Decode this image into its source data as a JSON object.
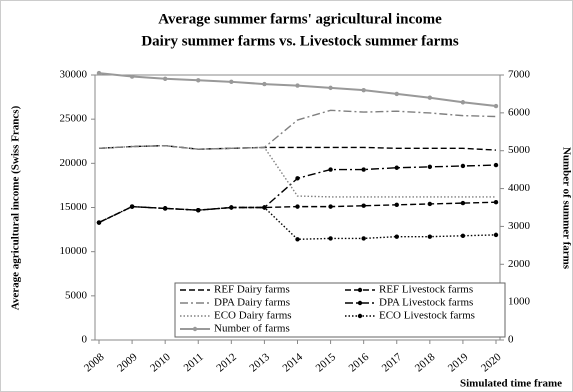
{
  "chart_data": {
    "type": "line",
    "title": "Average  summer farms' agricultural income",
    "subtitle": "Dairy summer farms vs.  Livestock summer farms",
    "y_label": "Average agricultural income (Swiss Francs)",
    "y2_label": "Number of summer farms",
    "x_label": "Simulated time frame",
    "categories": [
      "2008",
      "2009",
      "2010",
      "2011",
      "2012",
      "2013",
      "2014",
      "2015",
      "2016",
      "2017",
      "2018",
      "2019",
      "2020"
    ],
    "ylim": [
      0,
      30000
    ],
    "yticks": [
      0,
      5000,
      10000,
      15000,
      20000,
      25000,
      30000
    ],
    "y2lim": [
      0,
      7000
    ],
    "y2ticks": [
      0,
      1000,
      2000,
      3000,
      4000,
      5000,
      6000,
      7000
    ],
    "series": [
      {
        "name": "REF Dairy farms",
        "color": "#000000",
        "style": "dashed",
        "marker": false,
        "values": [
          21700,
          21900,
          22000,
          21600,
          21700,
          21800,
          21800,
          21800,
          21800,
          21700,
          21700,
          21700,
          21500
        ]
      },
      {
        "name": "REF Livestock farms",
        "color": "#000000",
        "style": "dashed",
        "marker": true,
        "values": [
          13300,
          15100,
          14900,
          14700,
          15000,
          15000,
          15100,
          15100,
          15200,
          15300,
          15400,
          15500,
          15600
        ]
      },
      {
        "name": "DPA Dairy farms",
        "color": "#808080",
        "style": "dashdot",
        "marker": false,
        "values": [
          21700,
          21900,
          22000,
          21600,
          21700,
          21800,
          24900,
          26000,
          25800,
          25900,
          25700,
          25400,
          25300
        ]
      },
      {
        "name": "DPA Livestock farms",
        "color": "#000000",
        "style": "dashdot",
        "marker": true,
        "values": [
          13300,
          15100,
          14900,
          14700,
          15000,
          15000,
          18300,
          19300,
          19300,
          19500,
          19600,
          19700,
          19800
        ]
      },
      {
        "name": "ECO Dairy farms",
        "color": "#808080",
        "style": "dotted",
        "marker": false,
        "values": [
          21700,
          21900,
          22000,
          21600,
          21700,
          21800,
          16300,
          16200,
          16200,
          16200,
          16200,
          16200,
          16200
        ]
      },
      {
        "name": "ECO Livestock farms",
        "color": "#000000",
        "style": "dotted",
        "marker": true,
        "values": [
          13300,
          15100,
          14900,
          14700,
          15000,
          15000,
          11400,
          11500,
          11500,
          11700,
          11700,
          11800,
          11900
        ]
      },
      {
        "name": "Number of farms",
        "color": "#999999",
        "style": "solid",
        "marker": true,
        "axis": "y2",
        "values": [
          7050,
          6960,
          6900,
          6860,
          6820,
          6760,
          6720,
          6660,
          6600,
          6500,
          6400,
          6280,
          6180
        ]
      }
    ]
  }
}
